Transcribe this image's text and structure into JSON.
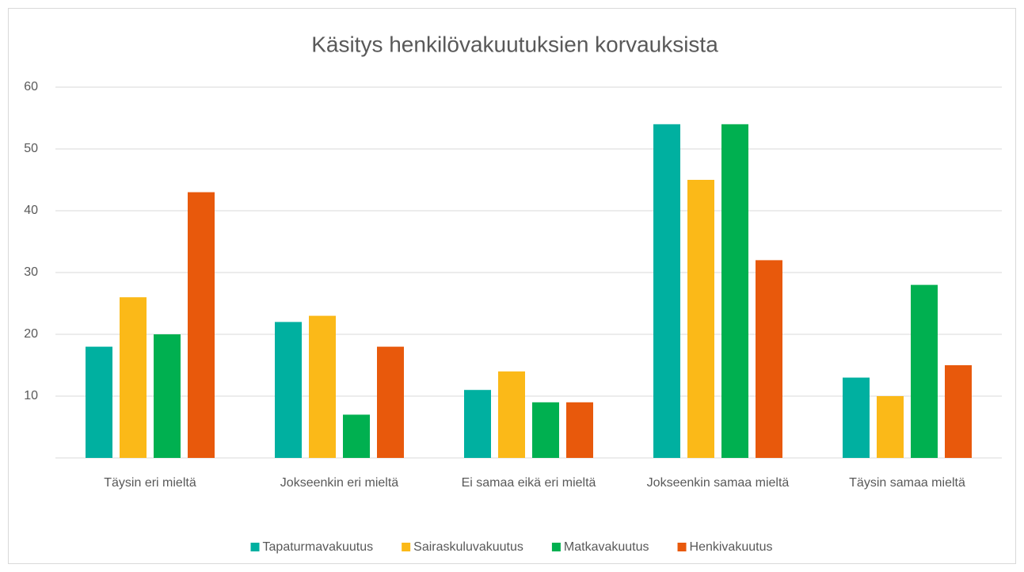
{
  "chart_data": {
    "type": "bar",
    "title": "Käsitys henkilövakuutuksien korvauksista",
    "categories": [
      "Täysin eri mieltä",
      "Jokseenkin eri mieltä",
      "Ei samaa eikä eri mieltä",
      "Jokseenkin samaa mieltä",
      "Täysin samaa mieltä"
    ],
    "series": [
      {
        "name": "Tapaturmavakuutus",
        "color": "#00b0a0",
        "values": [
          18,
          22,
          11,
          54,
          13
        ]
      },
      {
        "name": "Sairaskuluvakuutus",
        "color": "#fbb918",
        "values": [
          26,
          23,
          14,
          45,
          10
        ]
      },
      {
        "name": "Matkavakuutus",
        "color": "#00b050",
        "values": [
          20,
          7,
          9,
          54,
          28
        ]
      },
      {
        "name": "Henkivakuutus",
        "color": "#e8590c",
        "values": [
          43,
          18,
          9,
          32,
          15
        ]
      }
    ],
    "ylim": [
      0,
      60
    ],
    "yticks": [
      10,
      20,
      30,
      40,
      50,
      60
    ],
    "grid": true,
    "legend": "bottom"
  }
}
